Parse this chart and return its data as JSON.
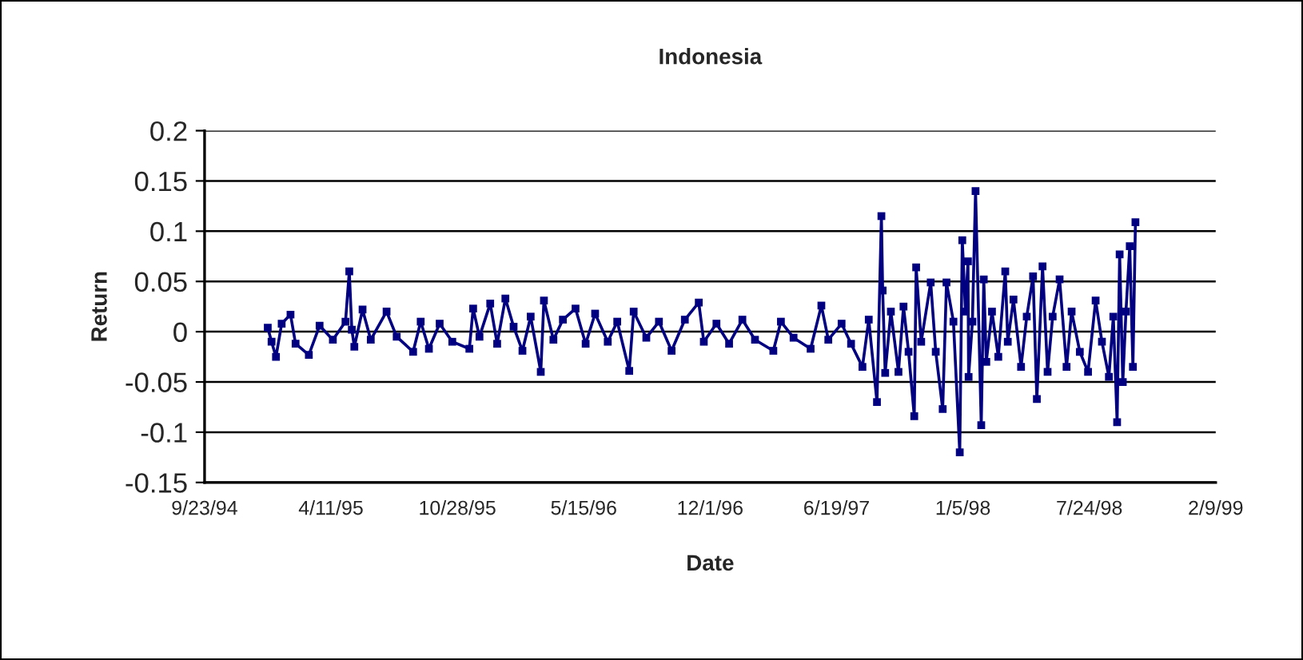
{
  "chart_data": {
    "type": "line",
    "title": "Indonesia",
    "xlabel": "Date",
    "ylabel": "Return",
    "x": [
      "1995-01-01",
      "1995-01-07",
      "1995-01-14",
      "1995-01-23",
      "1995-02-06",
      "1995-02-14",
      "1995-03-07",
      "1995-03-24",
      "1995-04-14",
      "1995-05-04",
      "1995-05-10",
      "1995-05-14",
      "1995-05-18",
      "1995-05-31",
      "1995-06-13",
      "1995-07-08",
      "1995-07-24",
      "1995-08-19",
      "1995-08-31",
      "1995-09-13",
      "1995-09-30",
      "1995-10-20",
      "1995-11-16",
      "1995-11-22",
      "1995-12-02",
      "1995-12-19",
      "1995-12-30",
      "1996-01-12",
      "1996-01-25",
      "1996-02-08",
      "1996-02-21",
      "1996-03-08",
      "1996-03-13",
      "1996-03-28",
      "1996-04-12",
      "1996-05-02",
      "1996-05-18",
      "1996-06-02",
      "1996-06-22",
      "1996-07-07",
      "1996-07-26",
      "1996-08-02",
      "1996-08-22",
      "1996-09-11",
      "1996-10-01",
      "1996-10-22",
      "1996-11-13",
      "1996-11-21",
      "1996-12-11",
      "1996-12-31",
      "1997-01-21",
      "1997-02-10",
      "1997-03-11",
      "1997-03-23",
      "1997-04-12",
      "1997-05-09",
      "1997-05-26",
      "1997-06-06",
      "1997-06-27",
      "1997-07-12",
      "1997-07-30",
      "1997-08-09",
      "1997-08-22",
      "1997-08-29",
      "1997-08-31",
      "1997-09-04",
      "1997-09-13",
      "1997-09-25",
      "1997-10-03",
      "1997-10-11",
      "1997-10-20",
      "1997-10-23",
      "1997-10-31",
      "1997-11-15",
      "1997-11-23",
      "1997-12-04",
      "1997-12-10",
      "1997-12-21",
      "1997-12-31",
      "1998-01-04",
      "1998-01-09",
      "1998-01-13",
      "1998-01-14",
      "1998-01-20",
      "1998-01-25",
      "1998-02-03",
      "1998-02-07",
      "1998-02-11",
      "1998-02-20",
      "1998-03-02",
      "1998-03-13",
      "1998-03-17",
      "1998-03-26",
      "1998-04-07",
      "1998-04-16",
      "1998-04-26",
      "1998-05-02",
      "1998-05-11",
      "1998-05-19",
      "1998-05-27",
      "1998-06-07",
      "1998-06-18",
      "1998-06-26",
      "1998-07-09",
      "1998-07-22",
      "1998-08-03",
      "1998-08-13",
      "1998-08-24",
      "1998-08-31",
      "1998-09-06",
      "1998-09-10",
      "1998-09-15",
      "1998-09-20",
      "1998-09-26",
      "1998-10-01",
      "1998-10-05"
    ],
    "series": [
      {
        "color": "#000080",
        "values": [
          0.004,
          -0.01,
          -0.025,
          0.008,
          0.017,
          -0.012,
          -0.023,
          0.006,
          -0.008,
          0.01,
          0.06,
          0.002,
          -0.015,
          0.022,
          -0.008,
          0.02,
          -0.005,
          -0.02,
          0.01,
          -0.017,
          0.008,
          -0.01,
          -0.017,
          0.023,
          -0.005,
          0.028,
          -0.012,
          0.033,
          0.005,
          -0.019,
          0.015,
          -0.04,
          0.031,
          -0.008,
          0.012,
          0.023,
          -0.012,
          0.018,
          -0.01,
          0.01,
          -0.039,
          0.02,
          -0.006,
          0.01,
          -0.019,
          0.012,
          0.029,
          -0.01,
          0.008,
          -0.012,
          0.012,
          -0.008,
          -0.019,
          0.01,
          -0.006,
          -0.017,
          0.026,
          -0.008,
          0.008,
          -0.012,
          -0.035,
          0.012,
          -0.07,
          0.115,
          0.041,
          -0.041,
          0.02,
          -0.04,
          0.025,
          -0.02,
          -0.084,
          0.064,
          -0.01,
          0.049,
          -0.02,
          -0.077,
          0.049,
          0.01,
          -0.12,
          0.091,
          0.02,
          0.07,
          -0.045,
          0.01,
          0.14,
          -0.093,
          0.052,
          -0.03,
          0.02,
          -0.025,
          0.06,
          -0.01,
          0.032,
          -0.035,
          0.015,
          0.055,
          -0.067,
          0.065,
          -0.04,
          0.015,
          0.052,
          -0.035,
          0.02,
          -0.02,
          -0.04,
          0.031,
          -0.01,
          -0.045,
          0.015,
          -0.09,
          0.077,
          -0.05,
          0.02,
          0.085,
          -0.035,
          0.109
        ]
      }
    ],
    "xlim": [
      "1994-09-23",
      "1999-02-09"
    ],
    "xticks": [
      {
        "value": "1994-09-23",
        "label": "9/23/94"
      },
      {
        "value": "1995-04-11",
        "label": "4/11/95"
      },
      {
        "value": "1995-10-28",
        "label": "10/28/95"
      },
      {
        "value": "1996-05-15",
        "label": "5/15/96"
      },
      {
        "value": "1996-12-01",
        "label": "12/1/96"
      },
      {
        "value": "1997-06-19",
        "label": "6/19/97"
      },
      {
        "value": "1998-01-05",
        "label": "1/5/98"
      },
      {
        "value": "1998-07-24",
        "label": "7/24/98"
      },
      {
        "value": "1999-02-09",
        "label": "2/9/99"
      }
    ],
    "ylim": [
      -0.15,
      0.2
    ],
    "yticks": [
      -0.15,
      -0.1,
      -0.05,
      0,
      0.05,
      0.1,
      0.15,
      0.2
    ],
    "grid": "y",
    "marker": "square",
    "line_style": "solid",
    "legend": false
  }
}
